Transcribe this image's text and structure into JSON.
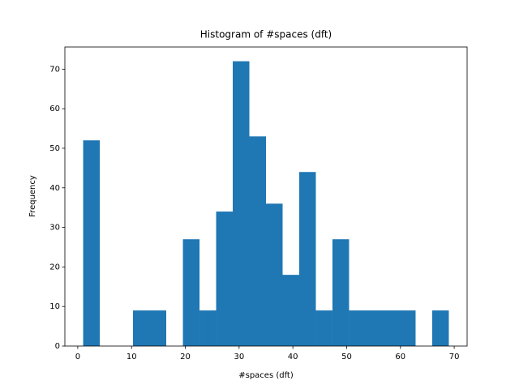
{
  "chart_data": {
    "type": "histogram",
    "title": "Histogram of #spaces (dft)",
    "x_label": "#spaces (dft)",
    "y_label": "Frequency",
    "color": "#1f77b4",
    "bins": [
      1,
      4.09,
      7.18,
      10.27,
      13.36,
      16.45,
      19.55,
      22.64,
      25.73,
      28.82,
      31.91,
      35,
      38.09,
      41.18,
      44.27,
      47.36,
      50.45,
      53.55,
      56.64,
      59.73,
      62.82,
      65.91,
      69
    ],
    "values": [
      52,
      0,
      0,
      9,
      9,
      0,
      27,
      9,
      34,
      72,
      53,
      36,
      18,
      44,
      9,
      27,
      9,
      9,
      9,
      9,
      0,
      9
    ],
    "xlim": [
      -2.4,
      72.4
    ],
    "xticks": [
      0,
      10,
      20,
      30,
      40,
      50,
      60,
      70
    ],
    "ylim": [
      0,
      75.6
    ],
    "yticks": [
      0,
      10,
      20,
      30,
      40,
      50,
      60,
      70
    ]
  }
}
